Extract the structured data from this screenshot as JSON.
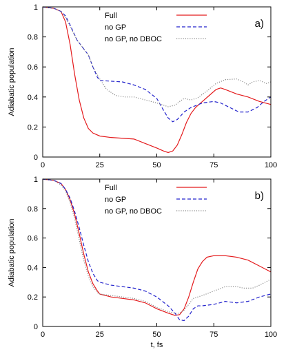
{
  "chart_data": [
    {
      "type": "line",
      "panel_label": "a)",
      "xlabel": "",
      "ylabel": "Adiabatic population",
      "xlim": [
        0,
        100
      ],
      "ylim": [
        0,
        1
      ],
      "xticks": [
        "0",
        "25",
        "50",
        "75",
        "100"
      ],
      "yticks": [
        "0",
        "0.2",
        "0.4",
        "0.6",
        "0.8",
        "1"
      ],
      "legend_position": "top-center",
      "series": [
        {
          "name": "Full",
          "color": "#e41a1c",
          "dash": "solid",
          "points": [
            [
              0,
              1
            ],
            [
              5,
              0.99
            ],
            [
              8,
              0.97
            ],
            [
              10,
              0.9
            ],
            [
              12,
              0.75
            ],
            [
              14,
              0.55
            ],
            [
              16,
              0.38
            ],
            [
              18,
              0.26
            ],
            [
              20,
              0.19
            ],
            [
              22,
              0.16
            ],
            [
              25,
              0.14
            ],
            [
              30,
              0.13
            ],
            [
              35,
              0.125
            ],
            [
              40,
              0.12
            ],
            [
              45,
              0.09
            ],
            [
              50,
              0.06
            ],
            [
              53,
              0.04
            ],
            [
              55,
              0.03
            ],
            [
              57,
              0.04
            ],
            [
              59,
              0.08
            ],
            [
              61,
              0.15
            ],
            [
              63,
              0.23
            ],
            [
              65,
              0.29
            ],
            [
              67,
              0.33
            ],
            [
              70,
              0.37
            ],
            [
              73,
              0.41
            ],
            [
              76,
              0.45
            ],
            [
              78,
              0.46
            ],
            [
              80,
              0.45
            ],
            [
              85,
              0.42
            ],
            [
              90,
              0.4
            ],
            [
              95,
              0.37
            ],
            [
              100,
              0.35
            ]
          ]
        },
        {
          "name": "no GP",
          "color": "#2222cc",
          "dash": "dashed",
          "points": [
            [
              0,
              1
            ],
            [
              5,
              0.99
            ],
            [
              8,
              0.97
            ],
            [
              10,
              0.94
            ],
            [
              12,
              0.88
            ],
            [
              15,
              0.78
            ],
            [
              18,
              0.72
            ],
            [
              20,
              0.68
            ],
            [
              22,
              0.6
            ],
            [
              24,
              0.53
            ],
            [
              25,
              0.51
            ],
            [
              30,
              0.505
            ],
            [
              35,
              0.5
            ],
            [
              40,
              0.48
            ],
            [
              45,
              0.45
            ],
            [
              50,
              0.39
            ],
            [
              53,
              0.31
            ],
            [
              55,
              0.26
            ],
            [
              57,
              0.235
            ],
            [
              59,
              0.25
            ],
            [
              62,
              0.3
            ],
            [
              65,
              0.33
            ],
            [
              70,
              0.36
            ],
            [
              75,
              0.37
            ],
            [
              78,
              0.36
            ],
            [
              82,
              0.33
            ],
            [
              86,
              0.3
            ],
            [
              90,
              0.3
            ],
            [
              94,
              0.33
            ],
            [
              97,
              0.37
            ],
            [
              100,
              0.4
            ]
          ]
        },
        {
          "name": "no GP, no DBOC",
          "color": "#888888",
          "dash": "dotted",
          "points": [
            [
              0,
              1
            ],
            [
              5,
              0.99
            ],
            [
              8,
              0.97
            ],
            [
              10,
              0.93
            ],
            [
              12,
              0.87
            ],
            [
              15,
              0.78
            ],
            [
              18,
              0.72
            ],
            [
              20,
              0.68
            ],
            [
              22,
              0.6
            ],
            [
              25,
              0.52
            ],
            [
              28,
              0.45
            ],
            [
              32,
              0.41
            ],
            [
              36,
              0.4
            ],
            [
              40,
              0.4
            ],
            [
              45,
              0.38
            ],
            [
              50,
              0.36
            ],
            [
              55,
              0.335
            ],
            [
              58,
              0.345
            ],
            [
              60,
              0.37
            ],
            [
              62,
              0.39
            ],
            [
              65,
              0.38
            ],
            [
              68,
              0.395
            ],
            [
              72,
              0.44
            ],
            [
              76,
              0.49
            ],
            [
              80,
              0.515
            ],
            [
              85,
              0.52
            ],
            [
              88,
              0.5
            ],
            [
              90,
              0.48
            ],
            [
              92,
              0.5
            ],
            [
              95,
              0.51
            ],
            [
              98,
              0.49
            ],
            [
              100,
              0.5
            ]
          ]
        }
      ]
    },
    {
      "type": "line",
      "panel_label": "b)",
      "xlabel": "t, fs",
      "ylabel": "Adiabatic population",
      "xlim": [
        0,
        100
      ],
      "ylim": [
        0,
        1
      ],
      "xticks": [
        "0",
        "25",
        "50",
        "75",
        "100"
      ],
      "yticks": [
        "0",
        "0.2",
        "0.4",
        "0.6",
        "0.8",
        "1"
      ],
      "legend_position": "top-center",
      "series": [
        {
          "name": "Full",
          "color": "#e41a1c",
          "dash": "solid",
          "points": [
            [
              0,
              1
            ],
            [
              5,
              0.99
            ],
            [
              8,
              0.97
            ],
            [
              10,
              0.93
            ],
            [
              12,
              0.86
            ],
            [
              14,
              0.76
            ],
            [
              16,
              0.63
            ],
            [
              18,
              0.49
            ],
            [
              20,
              0.37
            ],
            [
              22,
              0.29
            ],
            [
              24,
              0.24
            ],
            [
              25,
              0.22
            ],
            [
              30,
              0.2
            ],
            [
              35,
              0.19
            ],
            [
              40,
              0.18
            ],
            [
              45,
              0.16
            ],
            [
              50,
              0.12
            ],
            [
              55,
              0.09
            ],
            [
              58,
              0.075
            ],
            [
              60,
              0.08
            ],
            [
              62,
              0.12
            ],
            [
              64,
              0.2
            ],
            [
              66,
              0.3
            ],
            [
              68,
              0.39
            ],
            [
              70,
              0.44
            ],
            [
              72,
              0.47
            ],
            [
              75,
              0.48
            ],
            [
              80,
              0.48
            ],
            [
              85,
              0.47
            ],
            [
              90,
              0.45
            ],
            [
              95,
              0.41
            ],
            [
              100,
              0.37
            ]
          ]
        },
        {
          "name": "no GP",
          "color": "#2222cc",
          "dash": "dashed",
          "points": [
            [
              0,
              1
            ],
            [
              5,
              0.99
            ],
            [
              8,
              0.97
            ],
            [
              10,
              0.93
            ],
            [
              12,
              0.87
            ],
            [
              14,
              0.78
            ],
            [
              16,
              0.67
            ],
            [
              18,
              0.55
            ],
            [
              20,
              0.44
            ],
            [
              22,
              0.36
            ],
            [
              24,
              0.31
            ],
            [
              25,
              0.3
            ],
            [
              30,
              0.28
            ],
            [
              35,
              0.27
            ],
            [
              40,
              0.26
            ],
            [
              45,
              0.24
            ],
            [
              50,
              0.2
            ],
            [
              55,
              0.14
            ],
            [
              58,
              0.09
            ],
            [
              60,
              0.045
            ],
            [
              62,
              0.04
            ],
            [
              64,
              0.07
            ],
            [
              66,
              0.12
            ],
            [
              68,
              0.14
            ],
            [
              70,
              0.14
            ],
            [
              75,
              0.15
            ],
            [
              80,
              0.17
            ],
            [
              85,
              0.16
            ],
            [
              90,
              0.17
            ],
            [
              95,
              0.2
            ],
            [
              100,
              0.22
            ]
          ]
        },
        {
          "name": "no GP, no DBOC",
          "color": "#888888",
          "dash": "dotted",
          "points": [
            [
              0,
              1
            ],
            [
              5,
              0.99
            ],
            [
              8,
              0.96
            ],
            [
              10,
              0.92
            ],
            [
              12,
              0.84
            ],
            [
              14,
              0.73
            ],
            [
              16,
              0.59
            ],
            [
              18,
              0.45
            ],
            [
              20,
              0.34
            ],
            [
              22,
              0.27
            ],
            [
              24,
              0.23
            ],
            [
              25,
              0.22
            ],
            [
              30,
              0.21
            ],
            [
              35,
              0.2
            ],
            [
              40,
              0.19
            ],
            [
              45,
              0.17
            ],
            [
              50,
              0.13
            ],
            [
              55,
              0.1
            ],
            [
              58,
              0.09
            ],
            [
              60,
              0.09
            ],
            [
              62,
              0.11
            ],
            [
              64,
              0.15
            ],
            [
              66,
              0.19
            ],
            [
              68,
              0.2
            ],
            [
              70,
              0.21
            ],
            [
              75,
              0.24
            ],
            [
              80,
              0.27
            ],
            [
              85,
              0.27
            ],
            [
              88,
              0.26
            ],
            [
              92,
              0.26
            ],
            [
              95,
              0.28
            ],
            [
              100,
              0.32
            ]
          ]
        }
      ]
    }
  ]
}
